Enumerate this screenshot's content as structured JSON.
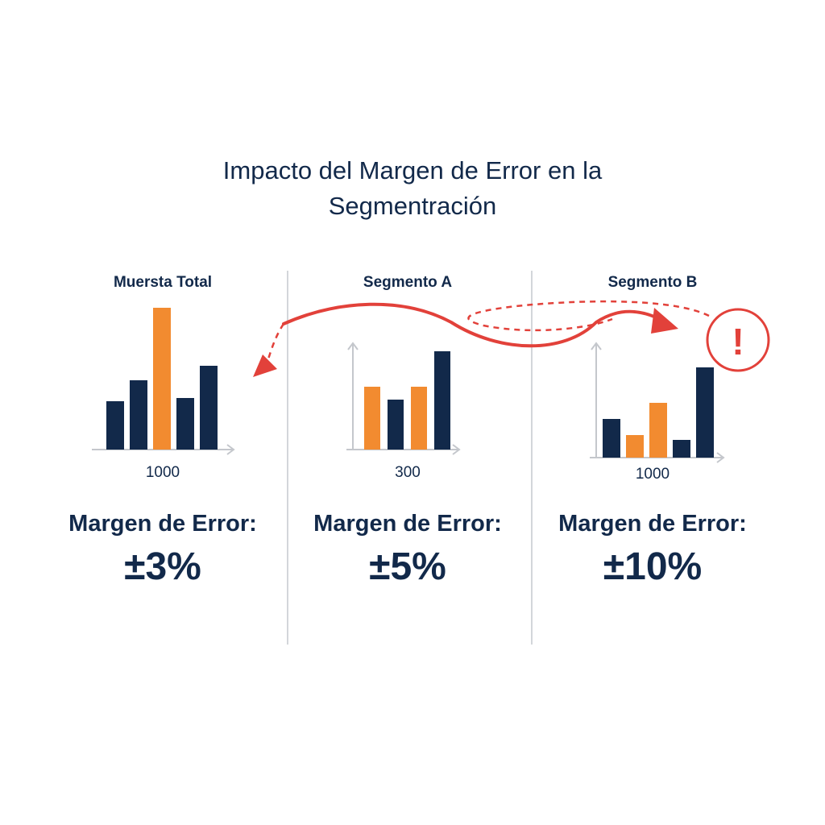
{
  "title_line1": "Impacto del Margen de Error en la",
  "title_line2": "Segmentración",
  "colors": {
    "navy": "#12294a",
    "orange": "#f28b30",
    "red": "#e2413a",
    "axis": "#c4c7cc"
  },
  "chart_data": [
    {
      "type": "bar",
      "title": "Muersta Total",
      "values": [
        60,
        86,
        176,
        64,
        104
      ],
      "colors": [
        "navy",
        "navy",
        "orange",
        "navy",
        "navy"
      ],
      "sample_size": "1000",
      "margin_label": "Margen de Error:",
      "margin_value": "±3%",
      "axes_arrows": "x-only"
    },
    {
      "type": "bar",
      "title": "Segmento A",
      "values": [
        78,
        62,
        78,
        122
      ],
      "colors": [
        "orange",
        "navy",
        "orange",
        "navy"
      ],
      "sample_size": "300",
      "margin_label": "Margen de Error:",
      "margin_value": "±5%",
      "axes_arrows": "x-and-y"
    },
    {
      "type": "bar",
      "title": "Segmento B",
      "values": [
        48,
        28,
        68,
        22,
        112
      ],
      "colors": [
        "navy",
        "orange",
        "orange",
        "navy",
        "navy"
      ],
      "sample_size": "1000",
      "margin_label": "Margen de Error:",
      "margin_value": "±10%",
      "axes_arrows": "x-and-y",
      "annotation": "warning-icon"
    }
  ],
  "warning_symbol": "!"
}
